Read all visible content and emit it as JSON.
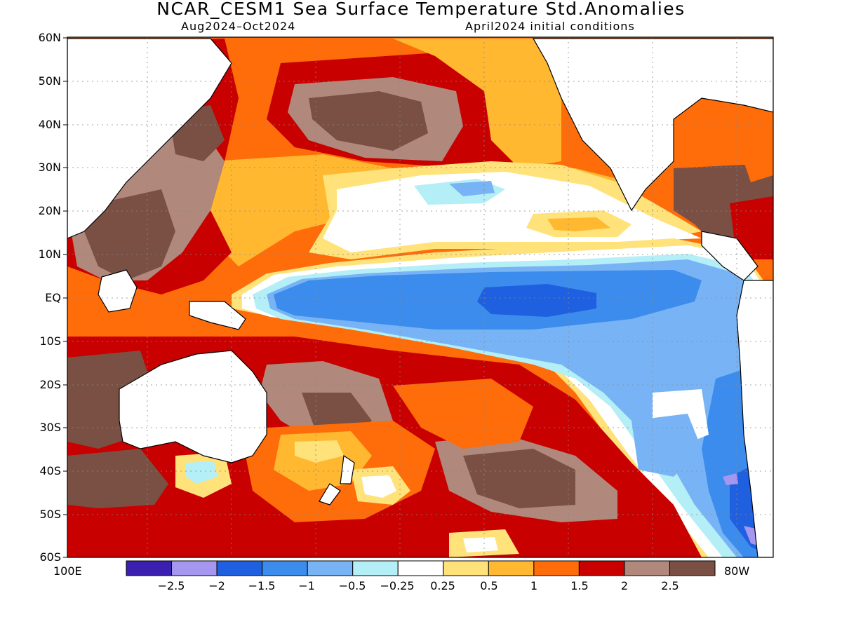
{
  "title": "NCAR_CESM1 Sea Surface Temperature Std.Anomalies",
  "subtitle_left": "Aug2024–Oct2024",
  "subtitle_right": "April2024 initial conditions",
  "lat_labels": [
    "60N",
    "50N",
    "40N",
    "30N",
    "20N",
    "10N",
    "EQ",
    "10S",
    "20S",
    "30S",
    "40S",
    "50S",
    "60S"
  ],
  "lon_left_label": "100E",
  "lon_right_label": "80W",
  "colorbar": {
    "colors": [
      "#3a1fb0",
      "#a596f0",
      "#1f60e0",
      "#3c8ced",
      "#78b4f5",
      "#b4eef6",
      "#ffffff",
      "#ffe27a",
      "#ffb830",
      "#ff6c0a",
      "#c80000",
      "#b0887c",
      "#7a5044"
    ],
    "tick_labels": [
      "−2.5",
      "−2",
      "−1.5",
      "−1",
      "−0.5",
      "−0.25",
      "0.25",
      "0.5",
      "1",
      "1.5",
      "2",
      "2.5"
    ]
  },
  "map_data": {
    "domain": {
      "lon_range": [
        "100E",
        "80W"
      ],
      "lat_range": [
        "60S",
        "60N"
      ]
    },
    "land_color": "#ffffff",
    "grid": true
  }
}
